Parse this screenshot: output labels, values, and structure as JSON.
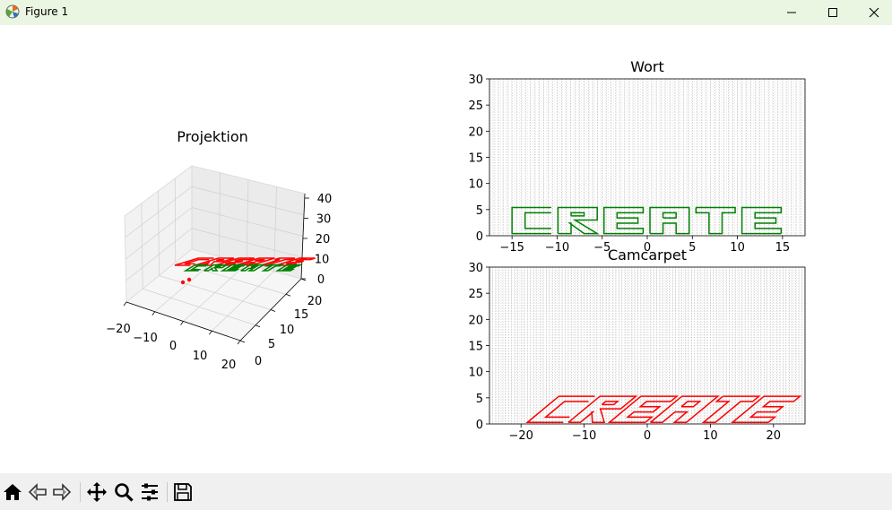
{
  "window": {
    "title": "Figure 1",
    "controls": [
      "minimize-icon",
      "maximize-icon",
      "close-icon"
    ]
  },
  "toolbar": {
    "buttons": [
      "home-icon",
      "back-icon",
      "forward-icon",
      "pan-icon",
      "zoom-icon",
      "configure-subplots-icon",
      "save-icon"
    ]
  },
  "colors": {
    "green": "#008000",
    "red": "#ff0000",
    "titlebar": "#eaf6e2",
    "toolbar": "#f0f0f0"
  },
  "chart_data": [
    {
      "type": "scatter",
      "title": "Projektion",
      "projection": "3d",
      "x_ticks": [
        "−20",
        "−10",
        "0",
        "10",
        "20"
      ],
      "y_ticks": [
        "0",
        "5",
        "10",
        "15",
        "20"
      ],
      "z_ticks": [
        "0",
        "10",
        "20",
        "30",
        "40"
      ],
      "xlim": [
        -20,
        20
      ],
      "ylim": [
        0,
        20
      ],
      "zlim": [
        0,
        40
      ],
      "series": [
        {
          "color": "#008000",
          "text": "CREATE"
        },
        {
          "color": "#ff0000",
          "text": "CREATE"
        }
      ]
    },
    {
      "type": "line",
      "title": "Wort",
      "x_ticks": [
        "−15",
        "−10",
        "−5",
        "0",
        "5",
        "10",
        "15"
      ],
      "y_ticks": [
        "0",
        "5",
        "10",
        "15",
        "20",
        "25",
        "30"
      ],
      "xlim": [
        -17.5,
        17.5
      ],
      "ylim": [
        0,
        30
      ],
      "grid": true,
      "series": [
        {
          "color": "#008000",
          "text": "CREATE"
        }
      ]
    },
    {
      "type": "line",
      "title": "Camcarpet",
      "x_ticks": [
        "−20",
        "−10",
        "0",
        "10",
        "20"
      ],
      "y_ticks": [
        "0",
        "5",
        "10",
        "15",
        "20",
        "25",
        "30"
      ],
      "xlim": [
        -25,
        25
      ],
      "ylim": [
        0,
        30
      ],
      "grid": true,
      "series": [
        {
          "color": "#ff0000",
          "text": "CREATE"
        }
      ]
    }
  ]
}
